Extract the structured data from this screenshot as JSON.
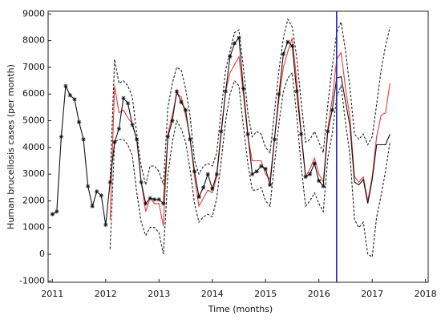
{
  "chart_data": {
    "type": "line",
    "xlabel": "Time (months)",
    "ylabel": "Human brucellosis cases (per month)",
    "xlim": [
      2010.92,
      2018.05
    ],
    "ylim": [
      -1050,
      9100
    ],
    "xticks": [
      2011,
      2012,
      2013,
      2014,
      2015,
      2016,
      2017,
      2018
    ],
    "yticks": [
      -1000,
      0,
      1000,
      2000,
      3000,
      4000,
      5000,
      6000,
      7000,
      8000,
      9000
    ],
    "vline": {
      "x": 2016.333,
      "color": "#2424b8"
    },
    "x": [
      2011,
      2011.083,
      2011.167,
      2011.25,
      2011.333,
      2011.417,
      2011.5,
      2011.583,
      2011.667,
      2011.75,
      2011.833,
      2011.917,
      2012,
      2012.083,
      2012.167,
      2012.25,
      2012.333,
      2012.417,
      2012.5,
      2012.583,
      2012.667,
      2012.75,
      2012.833,
      2012.917,
      2013,
      2013.083,
      2013.167,
      2013.25,
      2013.333,
      2013.417,
      2013.5,
      2013.583,
      2013.667,
      2013.75,
      2013.833,
      2013.917,
      2014,
      2014.083,
      2014.167,
      2014.25,
      2014.333,
      2014.417,
      2014.5,
      2014.583,
      2014.667,
      2014.75,
      2014.833,
      2014.917,
      2015,
      2015.083,
      2015.167,
      2015.25,
      2015.333,
      2015.417,
      2015.5,
      2015.583,
      2015.667,
      2015.75,
      2015.833,
      2015.917,
      2016,
      2016.083,
      2016.167,
      2016.25,
      2016.333,
      2016.417,
      2016.5,
      2016.583,
      2016.667,
      2016.75,
      2016.833,
      2016.917,
      2017,
      2017.083,
      2017.167,
      2017.25,
      2017.333
    ],
    "series": [
      {
        "color": "#f03a3a",
        "dash": false,
        "values": [
          null,
          null,
          null,
          null,
          null,
          null,
          null,
          null,
          null,
          null,
          null,
          null,
          null,
          1300,
          6300,
          5300,
          5400,
          5100,
          4900,
          4300,
          2700,
          1600,
          2100,
          1900,
          1900,
          1050,
          4500,
          5200,
          6000,
          5900,
          5200,
          4400,
          2900,
          1800,
          2100,
          2400,
          2300,
          2900,
          4500,
          6100,
          6800,
          7100,
          7400,
          6000,
          4400,
          3500,
          3500,
          3500,
          3000,
          2800,
          4300,
          5800,
          7000,
          7600,
          8100,
          6500,
          4600,
          2900,
          3200,
          3600,
          3000,
          2700,
          4700,
          5800,
          7300,
          7550,
          6200,
          5100,
          2900,
          2700,
          2900,
          2000,
          2900,
          4400,
          5200,
          5300,
          6400
        ]
      },
      {
        "color": "#222222",
        "dash": true,
        "values": [
          null,
          null,
          null,
          null,
          null,
          null,
          null,
          null,
          null,
          null,
          null,
          null,
          null,
          2700,
          7300,
          6400,
          6500,
          6300,
          5900,
          4500,
          3300,
          2600,
          3300,
          3300,
          3100,
          2600,
          5500,
          6400,
          7000,
          6900,
          6200,
          5200,
          3500,
          3000,
          3300,
          3400,
          3300,
          3800,
          5400,
          6900,
          7600,
          8300,
          8400,
          7000,
          5300,
          4400,
          4600,
          4500,
          4000,
          3800,
          5300,
          6900,
          8100,
          8800,
          8500,
          7400,
          5700,
          4200,
          4300,
          4600,
          4200,
          3800,
          5600,
          7000,
          8300,
          8700,
          7600,
          6200,
          4500,
          4300,
          4500,
          4100,
          4400,
          5600,
          6900,
          7800,
          8500
        ]
      },
      {
        "color": "#222222",
        "dash": true,
        "values": [
          null,
          null,
          null,
          null,
          null,
          null,
          null,
          null,
          null,
          null,
          null,
          null,
          null,
          200,
          4200,
          4300,
          4300,
          4100,
          3700,
          2300,
          1200,
          700,
          1000,
          1000,
          800,
          0,
          3000,
          4200,
          5000,
          4700,
          4200,
          3200,
          1900,
          1200,
          1400,
          1500,
          1400,
          2100,
          3500,
          5000,
          6000,
          6500,
          6300,
          4800,
          3400,
          2400,
          2400,
          2500,
          2000,
          1800,
          3400,
          4900,
          6100,
          6600,
          6800,
          5200,
          3300,
          1800,
          2000,
          2300,
          1900,
          1600,
          3600,
          4500,
          5900,
          6300,
          4900,
          3700,
          1300,
          1000,
          1200,
          0,
          -100,
          1400,
          2200,
          3100,
          4200
        ]
      },
      {
        "color": "#111111",
        "dash": false,
        "marker": "star",
        "values": [
          1500,
          1600,
          4400,
          6300,
          5950,
          5800,
          4950,
          4300,
          2550,
          1800,
          2350,
          2200,
          1100,
          2700,
          4200,
          4700,
          5850,
          5650,
          4850,
          4300,
          2700,
          1900,
          2100,
          2050,
          2050,
          1900,
          4400,
          5000,
          6100,
          5700,
          5400,
          4300,
          3100,
          2150,
          2500,
          3000,
          2450,
          3000,
          4600,
          6100,
          7400,
          7900,
          8100,
          6200,
          4500,
          3000,
          3100,
          3300,
          3200,
          2600,
          4300,
          6000,
          7500,
          7950,
          7800,
          6100,
          4500,
          2900,
          3000,
          3400,
          2750,
          2550,
          4600,
          5400,
          null,
          null,
          null,
          null,
          null,
          null,
          null,
          null,
          null,
          null,
          null,
          null,
          null
        ]
      },
      {
        "color": "#111111",
        "dash": false,
        "values": [
          null,
          null,
          null,
          null,
          null,
          null,
          null,
          null,
          null,
          null,
          null,
          null,
          null,
          null,
          null,
          null,
          null,
          null,
          null,
          null,
          null,
          null,
          null,
          null,
          null,
          null,
          null,
          null,
          null,
          null,
          null,
          null,
          null,
          null,
          null,
          null,
          null,
          null,
          null,
          null,
          null,
          null,
          null,
          null,
          null,
          null,
          null,
          null,
          null,
          null,
          null,
          null,
          null,
          null,
          null,
          null,
          null,
          null,
          null,
          null,
          null,
          null,
          null,
          5400,
          6600,
          6650,
          5700,
          4800,
          2700,
          2600,
          2800,
          1900,
          2800,
          4100,
          4100,
          4100,
          4500
        ]
      }
    ]
  }
}
